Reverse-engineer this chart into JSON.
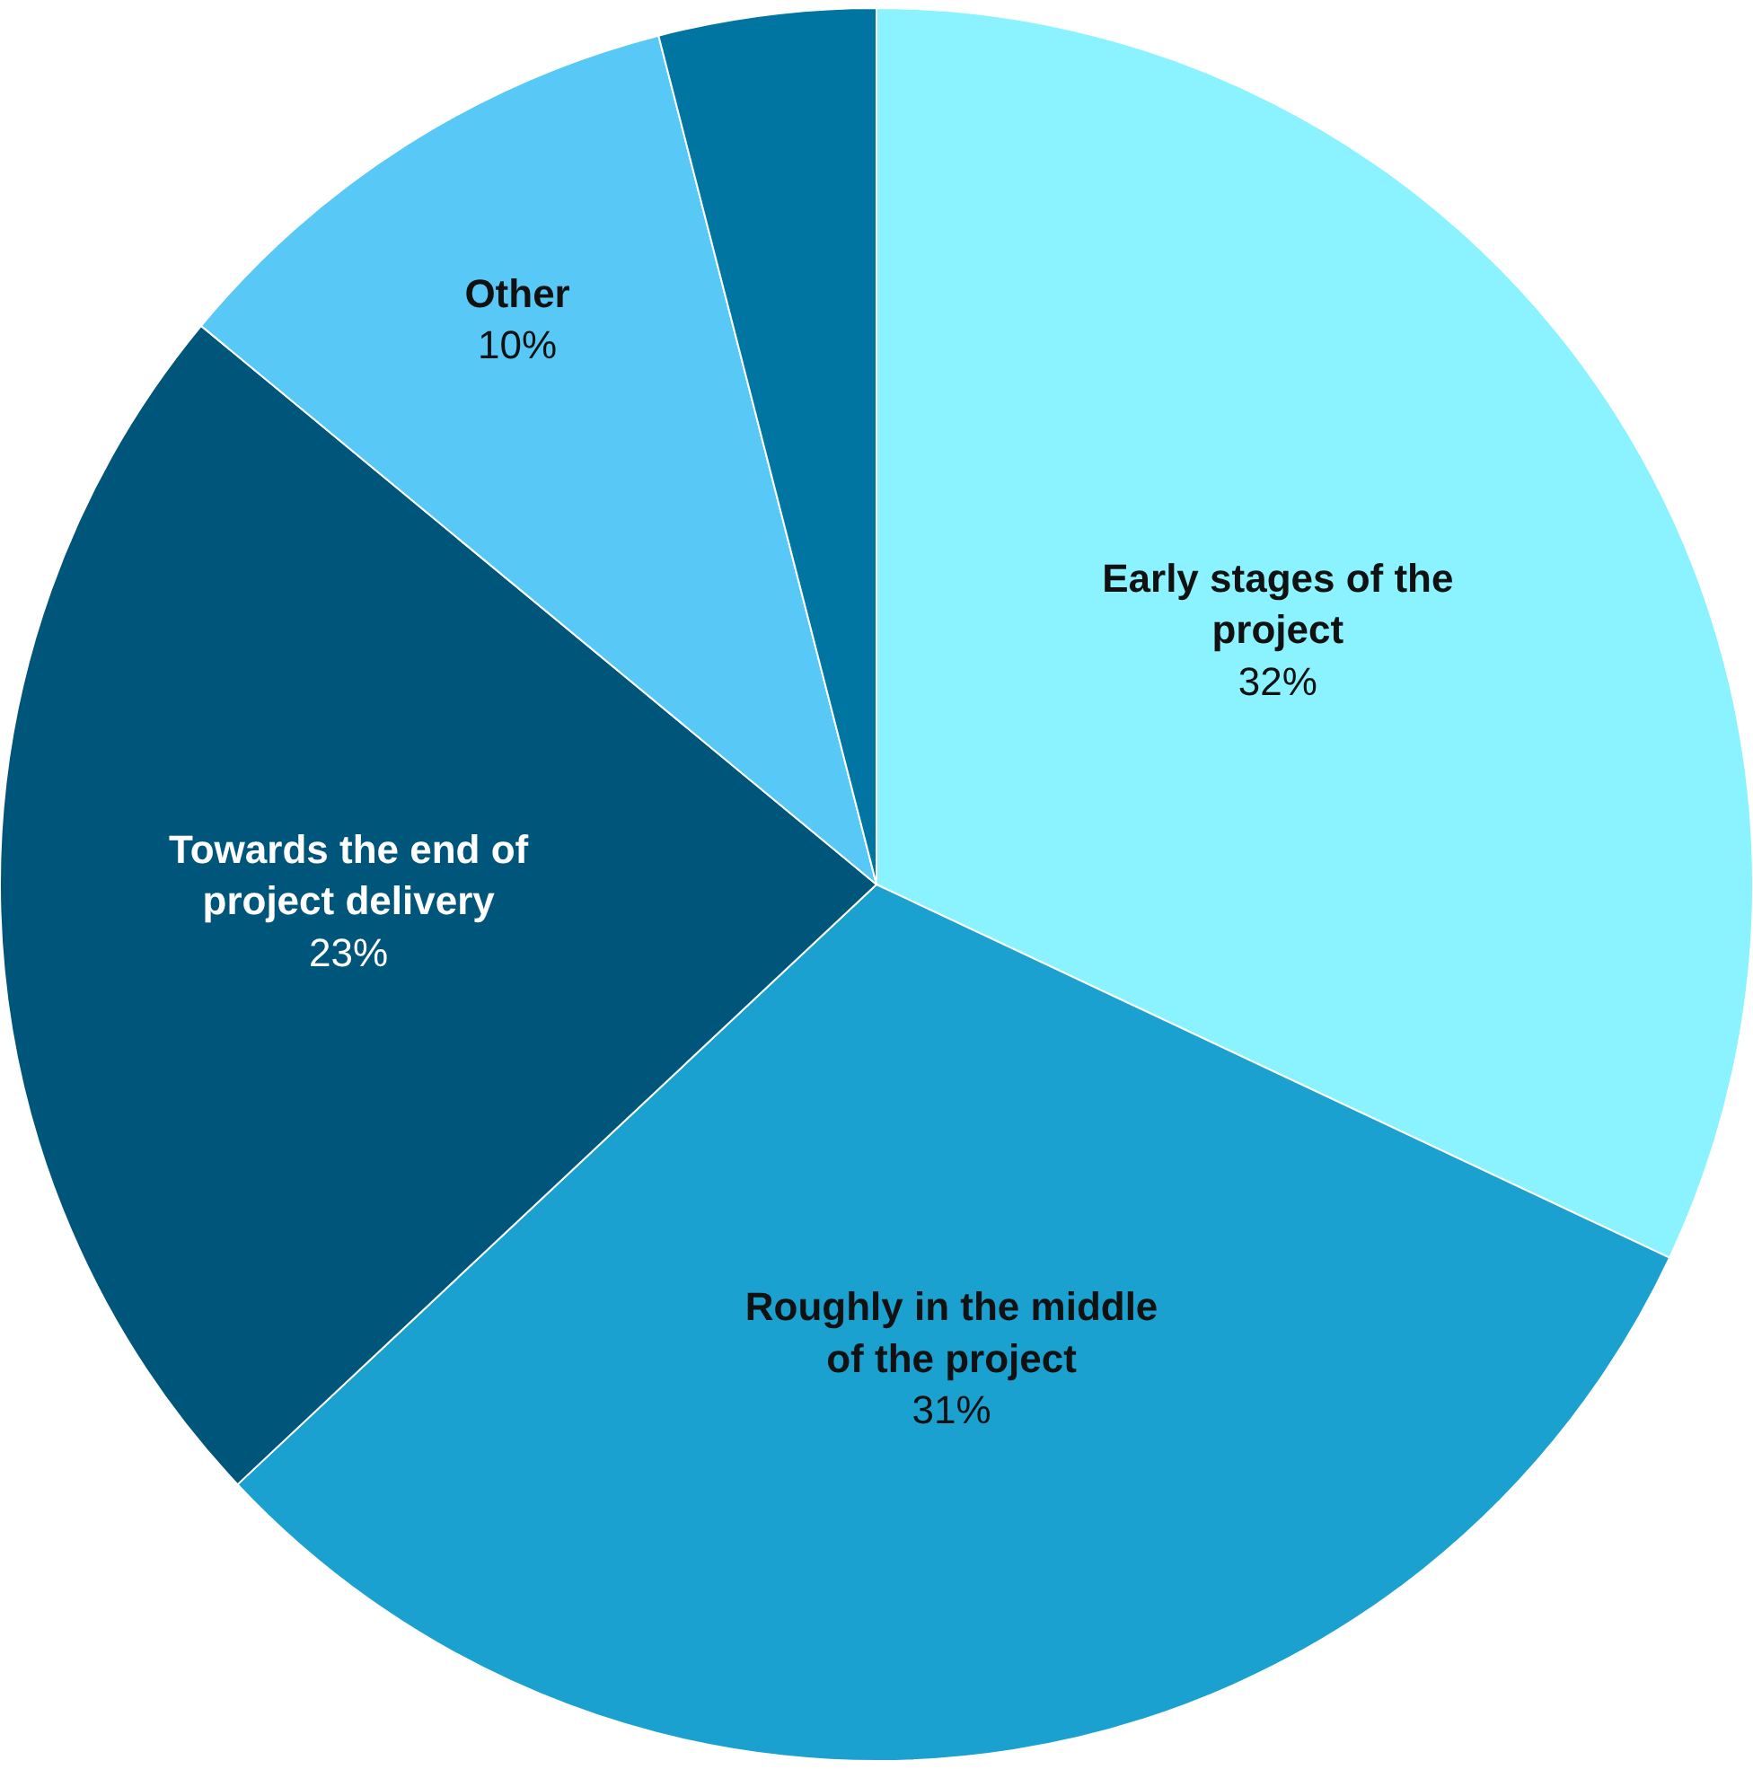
{
  "chart_data": {
    "type": "pie",
    "categories": [
      "Early stages of the project",
      "Roughly in the middle of the project",
      "Towards the end of project delivery",
      "Other",
      null
    ],
    "values": [
      32,
      31,
      23,
      10,
      4
    ],
    "value_labels": [
      "32%",
      "31%",
      "23%",
      "10%",
      null
    ],
    "colors": [
      "#8af3ff",
      "#1ba1cf",
      "#00557a",
      "#58c9f7",
      "#0075a1"
    ],
    "legend": false
  }
}
